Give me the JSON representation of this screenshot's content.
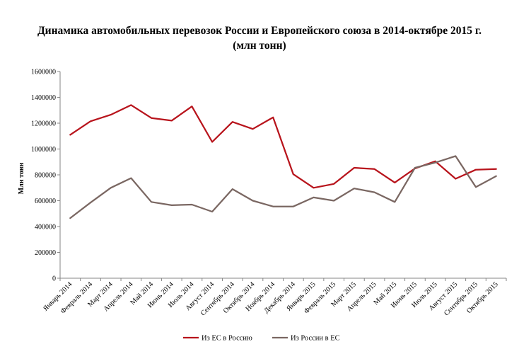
{
  "chart_data": {
    "type": "line",
    "title": "Динамика автомобильных  перевозок России и Европейского союза в 2014-октябре 2015 г.",
    "subtitle": "(млн тонн)",
    "ylabel": "Млн тонн",
    "xlabel": "",
    "ylim": [
      0,
      1600000
    ],
    "yticks": [
      "0",
      "200000",
      "400000",
      "600000",
      "800000",
      "1000000",
      "1200000",
      "1400000",
      "1600000"
    ],
    "grid": false,
    "legend_position": "bottom",
    "categories": [
      "Январь 2014",
      "Февраль 2014",
      "Март 2014",
      "Апрель 2014",
      "Май 2014",
      "Июнь 2014",
      "Июль 2014",
      "Август 2014",
      "Сентябрь 2014",
      "Октябрь 2014",
      "Ноябрь 2014",
      "Декабрь 2014",
      "Январь 2015",
      "Февраль 2015",
      "Март 2015",
      "Апрель 2015",
      "Май 2015",
      "Июнь 2015",
      "Июль 2015",
      "Август 2015",
      "Сентябрь 2015",
      "Октябрь 2015"
    ],
    "series": [
      {
        "name": "Из ЕС в Россию",
        "color": "#b8141c",
        "values": [
          1110000,
          1215000,
          1265000,
          1340000,
          1240000,
          1220000,
          1330000,
          1055000,
          1210000,
          1155000,
          1245000,
          805000,
          700000,
          730000,
          855000,
          845000,
          740000,
          850000,
          905000,
          770000,
          840000,
          845000
        ]
      },
      {
        "name": "Из России в ЕС",
        "color": "#7a6762",
        "values": [
          465000,
          585000,
          700000,
          775000,
          590000,
          565000,
          570000,
          515000,
          690000,
          600000,
          555000,
          555000,
          625000,
          600000,
          695000,
          665000,
          590000,
          855000,
          895000,
          945000,
          705000,
          790000
        ]
      }
    ]
  }
}
